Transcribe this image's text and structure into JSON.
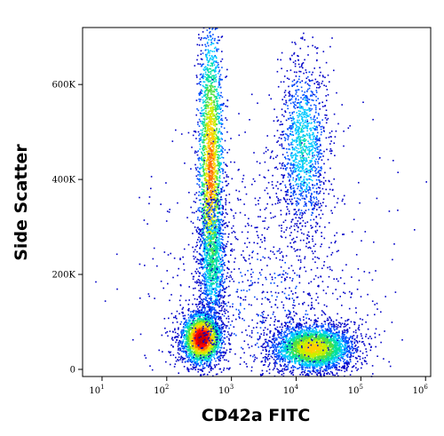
{
  "chart_data": {
    "type": "scatter",
    "subtype": "flow-cytometry density dot plot",
    "xlabel": "CD42a FITC",
    "ylabel": "Side Scatter",
    "x_scale": "log",
    "xlim": [
      5,
      1200000
    ],
    "ylim": [
      -15000,
      720000
    ],
    "x_ticks": [
      {
        "value": 10,
        "base": "10",
        "exp": "1"
      },
      {
        "value": 100,
        "base": "10",
        "exp": "2"
      },
      {
        "value": 1000,
        "base": "10",
        "exp": "3"
      },
      {
        "value": 10000,
        "base": "10",
        "exp": "4"
      },
      {
        "value": 100000,
        "base": "10",
        "exp": "5"
      },
      {
        "value": 1000000,
        "base": "10",
        "exp": "6"
      }
    ],
    "y_ticks": [
      {
        "value": 0,
        "label": "0"
      },
      {
        "value": 200000,
        "label": "200K"
      },
      {
        "value": 400000,
        "label": "400K"
      },
      {
        "value": 600000,
        "label": "600K"
      }
    ],
    "color_scale": [
      "#0000c8",
      "#0050ff",
      "#00c8ff",
      "#00e0a0",
      "#50e040",
      "#c8f000",
      "#ffd000",
      "#ff7000",
      "#ff0000",
      "#c80000"
    ],
    "populations": [
      {
        "x_center": 350,
        "y_center": 65000,
        "x_spread_decades": 0.16,
        "y_spread": 28000,
        "points": 2400,
        "peak_density": 1.0
      },
      {
        "x_center": 480,
        "y_center": 420000,
        "x_spread_decades": 0.1,
        "y_spread": 160000,
        "points": 2400,
        "peak_density": 0.75
      },
      {
        "x_center": 520,
        "y_center": 230000,
        "x_spread_decades": 0.11,
        "y_spread": 70000,
        "points": 800,
        "peak_density": 0.4
      },
      {
        "x_center": 18000,
        "y_center": 45000,
        "x_spread_decades": 0.32,
        "y_spread": 25000,
        "points": 3200,
        "peak_density": 0.65
      },
      {
        "x_center": 13000,
        "y_center": 470000,
        "x_spread_decades": 0.2,
        "y_spread": 95000,
        "points": 1300,
        "peak_density": 0.3
      },
      {
        "x_center": 3000,
        "y_center": 150000,
        "x_spread_decades": 0.9,
        "y_spread": 160000,
        "points": 1200,
        "peak_density": 0.1
      }
    ]
  }
}
